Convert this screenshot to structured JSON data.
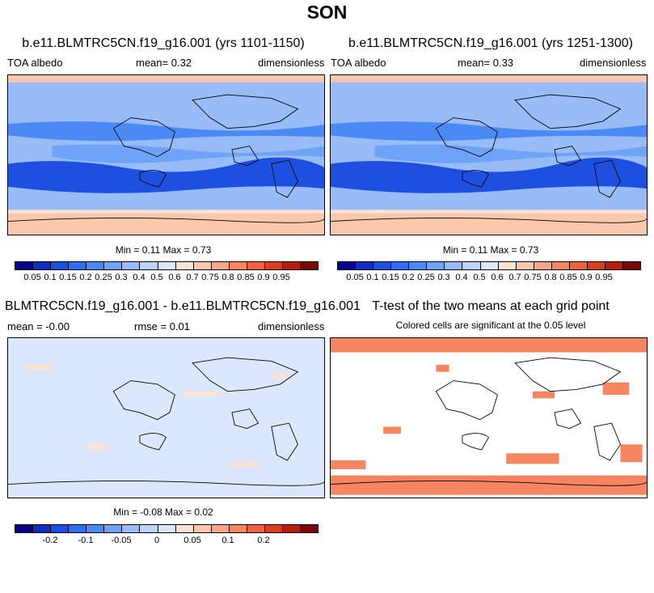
{
  "figure": {
    "title": "SON"
  },
  "panels": [
    {
      "title": "b.e11.BLMTRC5CN.f19_g16.001 (yrs 1101-1150)",
      "left_label": "TOA albedo",
      "mean_label": "mean=   0.32",
      "units": "dimensionless",
      "minmax": "Min =   0.11 Max =   0.73",
      "type": "field"
    },
    {
      "title": "b.e11.BLMTRC5CN.f19_g16.001 (yrs 1251-1300)",
      "left_label": "TOA albedo",
      "mean_label": "mean=   0.33",
      "units": "dimensionless",
      "minmax": "Min =   0.11 Max =   0.73",
      "type": "field"
    },
    {
      "title": "BLMTRC5CN.f19_g16.001 - b.e11.BLMTRC5CN.f19_g16.001",
      "mean_label": "mean = -0.00",
      "rmse_label": "rmse =   0.01",
      "units": "dimensionless",
      "minmax": "Min =  -0.08 Max =   0.02",
      "type": "diff"
    },
    {
      "title": "T-test of the two means at each grid point",
      "subtitle": "Colored cells are significant at the 0.05 level",
      "type": "ttest"
    }
  ],
  "colorbar_field": {
    "colors": [
      "#08008a",
      "#0f2ebf",
      "#1d4fe0",
      "#2e6ef0",
      "#4b8af5",
      "#6fa3f7",
      "#97bcf8",
      "#bdd3fa",
      "#dbe7fc",
      "#fde3d3",
      "#fbc8ad",
      "#f8a888",
      "#f58661",
      "#ef6140",
      "#dc3d21",
      "#b61e10",
      "#7a0805"
    ],
    "ticks": [
      "0.05",
      "0.1",
      "0.15",
      "0.2",
      "0.25",
      "0.3",
      "0.4",
      "0.5",
      "0.6",
      "0.7",
      "0.75",
      "0.8",
      "0.85",
      "0.9",
      "0.95"
    ]
  },
  "colorbar_diff": {
    "colors": [
      "#08008a",
      "#0f2ebf",
      "#1d4fe0",
      "#2e6ef0",
      "#4b8af5",
      "#6fa3f7",
      "#97bcf8",
      "#bdd3fa",
      "#dbe7fc",
      "#fde3d3",
      "#fbc8ad",
      "#f8a888",
      "#f58661",
      "#ef6140",
      "#dc3d21",
      "#b61e10",
      "#7a0805"
    ],
    "ticks": [
      "-0.2",
      "-0.1",
      "-0.05",
      "0",
      "0.05",
      "0.1",
      "0.2"
    ]
  },
  "map_colors": {
    "ocean_dark": "#1d4fe0",
    "ocean_mid": "#4b8af5",
    "ocean_light": "#97bcf8",
    "pale_blue": "#dbe7fc",
    "polar": "#fbc8ad",
    "significant": "#f58661"
  }
}
